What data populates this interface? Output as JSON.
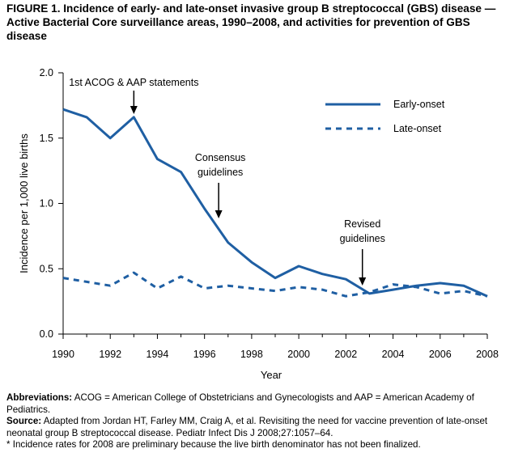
{
  "figure_title": "FIGURE 1. Incidence of early- and late-onset invasive group B streptococcal (GBS) disease — Active Bacterial Core surveillance areas, 1990–2008, and activities for prevention of GBS disease",
  "chart_data": {
    "type": "line",
    "x": [
      1990,
      1991,
      1992,
      1993,
      1994,
      1995,
      1996,
      1997,
      1998,
      1999,
      2000,
      2001,
      2002,
      2003,
      2004,
      2005,
      2006,
      2007,
      2008
    ],
    "series": [
      {
        "name": "Early-onset",
        "style": "solid",
        "color": "#1f5fa3",
        "values": [
          1.72,
          1.66,
          1.5,
          1.66,
          1.34,
          1.24,
          0.96,
          0.7,
          0.55,
          0.43,
          0.52,
          0.46,
          0.42,
          0.31,
          0.34,
          0.37,
          0.39,
          0.37,
          0.29
        ]
      },
      {
        "name": "Late-onset",
        "style": "dashed",
        "color": "#1f5fa3",
        "values": [
          0.43,
          0.4,
          0.37,
          0.47,
          0.35,
          0.44,
          0.35,
          0.37,
          0.35,
          0.33,
          0.36,
          0.34,
          0.29,
          0.32,
          0.38,
          0.36,
          0.31,
          0.33,
          0.29
        ]
      }
    ],
    "xlabel": "Year",
    "ylabel": "Incidence per 1,000 live births",
    "xlim": [
      1990,
      2008
    ],
    "ylim": [
      0,
      2.0
    ],
    "x_ticks": [
      1990,
      1992,
      1994,
      1996,
      1998,
      2000,
      2002,
      2004,
      2006,
      2008
    ],
    "y_ticks": [
      0,
      0.5,
      1.0,
      1.5,
      2.0
    ],
    "y_tick_labels": [
      "0.0",
      "0.5",
      "1.0",
      "1.5",
      "2.0"
    ],
    "grid": false,
    "legend_position": "top-right",
    "annotations": [
      {
        "lines": [
          "1st ACOG & AAP statements"
        ],
        "x": 1993
      },
      {
        "lines": [
          "Consensus",
          "guidelines"
        ],
        "x": 1996.6
      },
      {
        "lines": [
          "Revised",
          "guidelines"
        ],
        "x": 2002.7
      }
    ]
  },
  "footer": {
    "abbreviations_label": "Abbreviations:",
    "abbreviations_text": " ACOG = American College of Obstetricians and Gynecologists and AAP = American Academy of Pediatrics.",
    "source_label": "Source:",
    "source_text": " Adapted from Jordan HT, Farley MM, Craig A, et al. Revisiting the need for vaccine prevention of late-onset neonatal group B streptococcal disease. Pediatr Infect Dis J 2008;27:1057–64.",
    "note": "* Incidence rates for 2008 are preliminary because the live birth denominator has not been finalized."
  }
}
